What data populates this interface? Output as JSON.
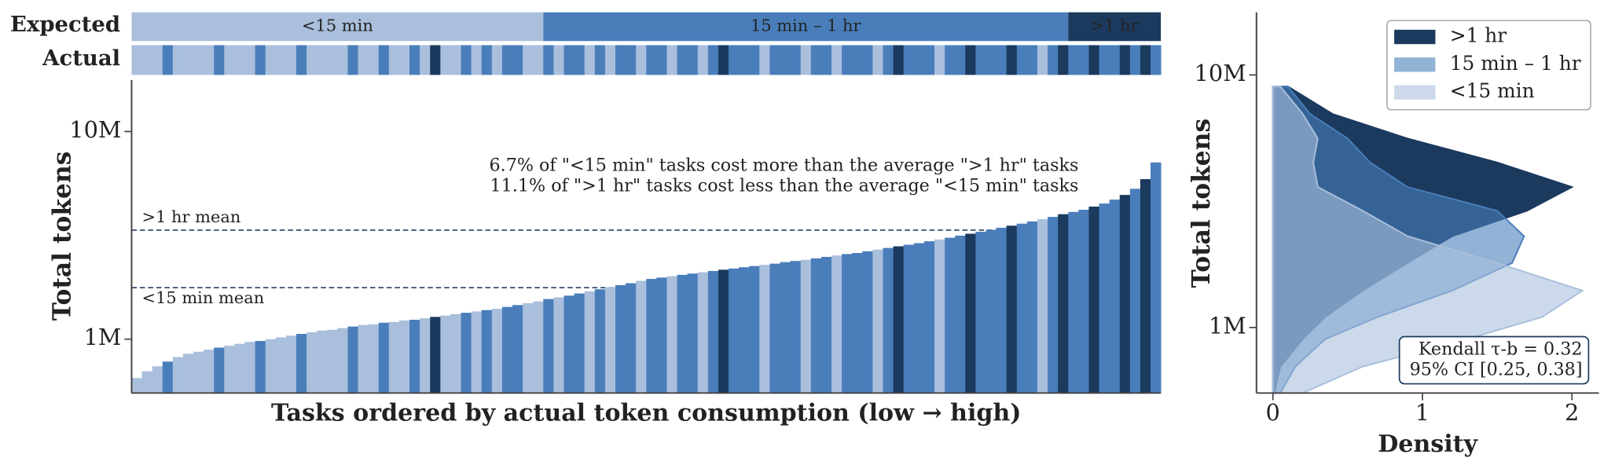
{
  "chart_data": [
    {
      "type": "token-bars",
      "xlabel": "Tasks ordered by actual token consumption (low → high)",
      "ylabel": "Total tokens",
      "rows": [
        "Expected",
        "Actual"
      ],
      "group_names": [
        "<15 min",
        "15 min – 1 hr",
        ">1 hr"
      ],
      "group_colors": [
        "#a9bfdc",
        "#4a7ebb",
        "#1b3a5e"
      ],
      "log_y": true,
      "ylim": [
        550000,
        17700000
      ],
      "yticks": [
        {
          "value": 1000000,
          "label": "1M"
        },
        {
          "value": 10000000,
          "label": "10M"
        }
      ],
      "reference_lines": [
        {
          "label": ">1 hr mean",
          "value": 3350000
        },
        {
          "label": "<15 min mean",
          "value": 1770000
        }
      ],
      "annotations": [
        "6.7% of \"<15 min\" tasks cost more than the average \">1 hr\" tasks",
        "11.1% of \">1 hr\" tasks cost less than the average \"<15 min\" tasks"
      ],
      "values": [
        650000,
        700000,
        740000,
        780000,
        820000,
        850000,
        870000,
        890000,
        910000,
        930000,
        950000,
        970000,
        980000,
        1000000,
        1020000,
        1040000,
        1060000,
        1080000,
        1100000,
        1110000,
        1130000,
        1150000,
        1170000,
        1180000,
        1200000,
        1210000,
        1230000,
        1240000,
        1260000,
        1280000,
        1300000,
        1320000,
        1340000,
        1360000,
        1380000,
        1400000,
        1430000,
        1460000,
        1490000,
        1520000,
        1560000,
        1590000,
        1620000,
        1660000,
        1700000,
        1740000,
        1780000,
        1820000,
        1860000,
        1910000,
        1950000,
        1980000,
        2010000,
        2040000,
        2070000,
        2100000,
        2130000,
        2160000,
        2190000,
        2220000,
        2250000,
        2280000,
        2310000,
        2350000,
        2380000,
        2410000,
        2450000,
        2490000,
        2530000,
        2570000,
        2600000,
        2650000,
        2700000,
        2750000,
        2800000,
        2850000,
        2900000,
        2960000,
        3020000,
        3080000,
        3150000,
        3220000,
        3290000,
        3360000,
        3440000,
        3520000,
        3600000,
        3690000,
        3780000,
        3880000,
        4000000,
        4100000,
        4200000,
        4350000,
        4500000,
        4700000,
        4950000,
        5300000,
        5900000,
        7100000
      ],
      "groups": [
        "<15 min",
        "<15 min",
        "<15 min",
        "15 min – 1 hr",
        "<15 min",
        "<15 min",
        "<15 min",
        "<15 min",
        "15 min – 1 hr",
        "<15 min",
        "<15 min",
        "<15 min",
        "15 min – 1 hr",
        "<15 min",
        "<15 min",
        "<15 min",
        "15 min – 1 hr",
        "<15 min",
        "<15 min",
        "<15 min",
        "<15 min",
        "15 min – 1 hr",
        "<15 min",
        "<15 min",
        "15 min – 1 hr",
        "<15 min",
        "<15 min",
        "15 min – 1 hr",
        "<15 min",
        ">1 hr",
        "<15 min",
        "<15 min",
        "15 min – 1 hr",
        "<15 min",
        "15 min – 1 hr",
        "<15 min",
        "15 min – 1 hr",
        "15 min – 1 hr",
        "<15 min",
        "<15 min",
        "15 min – 1 hr",
        "<15 min",
        "15 min – 1 hr",
        "15 min – 1 hr",
        "<15 min",
        "15 min – 1 hr",
        "<15 min",
        "15 min – 1 hr",
        "15 min – 1 hr",
        "<15 min",
        "15 min – 1 hr",
        "15 min – 1 hr",
        "<15 min",
        "15 min – 1 hr",
        "15 min – 1 hr",
        "<15 min",
        "15 min – 1 hr",
        ">1 hr",
        "15 min – 1 hr",
        "15 min – 1 hr",
        "15 min – 1 hr",
        "<15 min",
        "15 min – 1 hr",
        "15 min – 1 hr",
        "15 min – 1 hr",
        "<15 min",
        "15 min – 1 hr",
        "15 min – 1 hr",
        "<15 min",
        "15 min – 1 hr",
        "15 min – 1 hr",
        "15 min – 1 hr",
        "<15 min",
        "15 min – 1 hr",
        ">1 hr",
        "15 min – 1 hr",
        "15 min – 1 hr",
        "15 min – 1 hr",
        "<15 min",
        "15 min – 1 hr",
        "15 min – 1 hr",
        ">1 hr",
        "15 min – 1 hr",
        "15 min – 1 hr",
        "15 min – 1 hr",
        ">1 hr",
        "15 min – 1 hr",
        "15 min – 1 hr",
        "<15 min",
        "15 min – 1 hr",
        ">1 hr",
        "15 min – 1 hr",
        "15 min – 1 hr",
        ">1 hr",
        "15 min – 1 hr",
        "15 min – 1 hr",
        ">1 hr",
        "15 min – 1 hr",
        ">1 hr",
        "15 min – 1 hr"
      ]
    },
    {
      "type": "density",
      "xlabel": "Density",
      "ylabel": "Total tokens",
      "log_y": true,
      "xlim": [
        -0.11,
        2.18
      ],
      "xticks": [
        0,
        1,
        2
      ],
      "ylim": [
        550000,
        17700000
      ],
      "yticks": [
        {
          "value": 1000000,
          "label": "1M"
        },
        {
          "value": 10000000,
          "label": "10M"
        }
      ],
      "legend": "upper right",
      "y": [
        550000,
        700000,
        900000,
        1100000,
        1400000,
        1800000,
        2300000,
        2900000,
        3600000,
        4500000,
        5600000,
        7000000,
        9000000
      ],
      "series": [
        {
          "name": ">1 hr",
          "color": "#1b3a5e",
          "values": [
            0.01,
            0.05,
            0.2,
            0.35,
            0.6,
            0.9,
            1.2,
            1.7,
            2.0,
            1.5,
            0.9,
            0.4,
            0.1
          ]
        },
        {
          "name": "15 min – 1 hr",
          "color": "#4a7ebb",
          "values": [
            0.05,
            0.15,
            0.35,
            0.7,
            1.2,
            1.6,
            1.68,
            1.5,
            0.9,
            0.65,
            0.5,
            0.25,
            0.1
          ]
        },
        {
          "name": "<15 min",
          "color": "#a9bfdc",
          "values": [
            0.2,
            0.6,
            1.3,
            1.8,
            2.07,
            1.5,
            0.9,
            0.6,
            0.3,
            0.27,
            0.3,
            0.2,
            0.05
          ]
        }
      ],
      "annotation": [
        "Kendall τ-b = 0.32",
        "95% CI [0.25, 0.38]"
      ]
    }
  ]
}
